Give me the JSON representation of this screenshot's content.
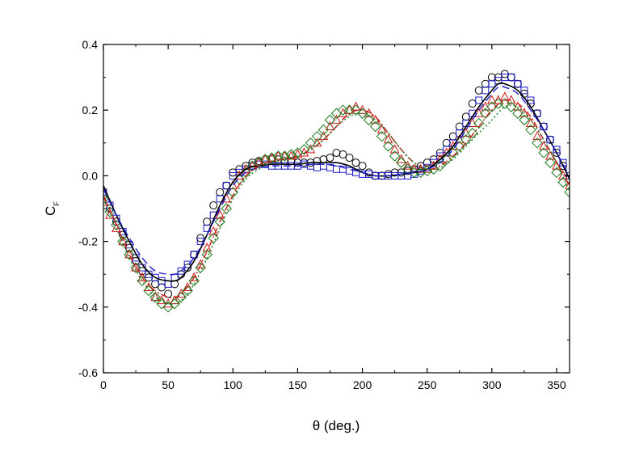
{
  "chart_data": {
    "type": "line",
    "xlabel": "θ (deg.)",
    "ylabel_main": "C",
    "ylabel_sub": "F",
    "xlim": [
      0,
      360
    ],
    "ylim": [
      -0.6,
      0.4
    ],
    "xticks": [
      0,
      50,
      100,
      150,
      200,
      250,
      300,
      350
    ],
    "yticks": [
      -0.6,
      -0.4,
      -0.2,
      0.0,
      0.2,
      0.4
    ],
    "xtick_labels": [
      "0",
      "50",
      "100",
      "150",
      "200",
      "250",
      "300",
      "350"
    ],
    "ytick_labels": [
      "-0.6",
      "-0.4",
      "-0.2",
      "0.0",
      "0.2",
      "0.4"
    ],
    "grid": false,
    "series": [
      {
        "kind": "markers",
        "marker": "circle",
        "color": "#000000",
        "x": [
          0,
          5,
          10,
          15,
          20,
          25,
          30,
          35,
          40,
          45,
          50,
          55,
          60,
          65,
          70,
          75,
          80,
          85,
          90,
          95,
          100,
          105,
          110,
          115,
          120,
          125,
          130,
          135,
          140,
          145,
          150,
          155,
          160,
          165,
          170,
          175,
          180,
          185,
          190,
          195,
          200,
          205,
          210,
          215,
          220,
          225,
          230,
          235,
          240,
          245,
          250,
          255,
          260,
          265,
          270,
          275,
          280,
          285,
          290,
          295,
          300,
          305,
          310,
          315,
          320,
          325,
          330,
          335,
          340,
          345,
          350,
          355,
          360
        ],
        "y": [
          -0.06,
          -0.1,
          -0.14,
          -0.18,
          -0.22,
          -0.26,
          -0.29,
          -0.31,
          -0.33,
          -0.34,
          -0.36,
          -0.33,
          -0.3,
          -0.28,
          -0.24,
          -0.19,
          -0.14,
          -0.09,
          -0.05,
          -0.03,
          0.01,
          0.02,
          0.03,
          0.04,
          0.045,
          0.05,
          0.05,
          0.05,
          0.045,
          0.045,
          0.04,
          0.04,
          0.04,
          0.045,
          0.05,
          0.055,
          0.07,
          0.065,
          0.055,
          0.04,
          0.03,
          0.01,
          0.0,
          0.0,
          0.005,
          0.01,
          0.01,
          0.015,
          0.02,
          0.03,
          0.04,
          0.05,
          0.07,
          0.1,
          0.12,
          0.15,
          0.18,
          0.22,
          0.26,
          0.28,
          0.3,
          0.3,
          0.31,
          0.3,
          0.28,
          0.25,
          0.22,
          0.19,
          0.15,
          0.11,
          0.07,
          0.03,
          -0.01
        ]
      },
      {
        "kind": "markers",
        "marker": "square",
        "color": "#1a1acc",
        "x": [
          0,
          5,
          10,
          15,
          20,
          25,
          30,
          35,
          40,
          45,
          50,
          55,
          60,
          65,
          70,
          75,
          80,
          85,
          90,
          95,
          100,
          105,
          110,
          115,
          120,
          125,
          130,
          135,
          140,
          145,
          150,
          155,
          160,
          165,
          170,
          175,
          180,
          185,
          190,
          195,
          200,
          205,
          210,
          215,
          220,
          225,
          230,
          235,
          240,
          245,
          250,
          255,
          260,
          265,
          270,
          275,
          280,
          285,
          290,
          295,
          300,
          305,
          310,
          315,
          320,
          325,
          330,
          335,
          340,
          345,
          350,
          355,
          360
        ],
        "y": [
          -0.05,
          -0.09,
          -0.13,
          -0.17,
          -0.21,
          -0.25,
          -0.28,
          -0.3,
          -0.31,
          -0.32,
          -0.33,
          -0.31,
          -0.29,
          -0.27,
          -0.24,
          -0.2,
          -0.16,
          -0.12,
          -0.07,
          -0.03,
          0.0,
          0.01,
          0.02,
          0.03,
          0.035,
          0.035,
          0.03,
          0.03,
          0.03,
          0.03,
          0.03,
          0.035,
          0.03,
          0.025,
          0.03,
          0.025,
          0.02,
          0.02,
          0.015,
          0.01,
          0.005,
          0.005,
          0.0,
          0.0,
          0.0,
          0.0,
          0.0,
          0.0,
          0.005,
          0.015,
          0.025,
          0.04,
          0.06,
          0.08,
          0.1,
          0.13,
          0.16,
          0.19,
          0.23,
          0.26,
          0.28,
          0.29,
          0.3,
          0.3,
          0.28,
          0.26,
          0.23,
          0.19,
          0.15,
          0.11,
          0.08,
          0.04,
          0.0
        ]
      },
      {
        "kind": "markers",
        "marker": "triangle",
        "color": "#cc1a1a",
        "x": [
          0,
          5,
          10,
          15,
          20,
          25,
          30,
          35,
          40,
          45,
          50,
          55,
          60,
          65,
          70,
          75,
          80,
          85,
          90,
          95,
          100,
          105,
          110,
          115,
          120,
          125,
          130,
          135,
          140,
          145,
          150,
          155,
          160,
          165,
          170,
          175,
          180,
          185,
          190,
          195,
          200,
          205,
          210,
          215,
          220,
          225,
          230,
          235,
          240,
          245,
          250,
          255,
          260,
          265,
          270,
          275,
          280,
          285,
          290,
          295,
          300,
          305,
          310,
          315,
          320,
          325,
          330,
          335,
          340,
          345,
          350,
          355,
          360
        ],
        "y": [
          -0.08,
          -0.12,
          -0.16,
          -0.2,
          -0.24,
          -0.28,
          -0.31,
          -0.34,
          -0.37,
          -0.38,
          -0.39,
          -0.38,
          -0.36,
          -0.34,
          -0.31,
          -0.27,
          -0.22,
          -0.17,
          -0.12,
          -0.07,
          -0.03,
          0.0,
          0.02,
          0.03,
          0.04,
          0.05,
          0.055,
          0.06,
          0.06,
          0.06,
          0.065,
          0.07,
          0.08,
          0.1,
          0.12,
          0.15,
          0.17,
          0.19,
          0.2,
          0.21,
          0.2,
          0.19,
          0.17,
          0.14,
          0.11,
          0.08,
          0.05,
          0.03,
          0.02,
          0.02,
          0.02,
          0.03,
          0.05,
          0.07,
          0.09,
          0.11,
          0.13,
          0.16,
          0.19,
          0.21,
          0.23,
          0.23,
          0.24,
          0.23,
          0.21,
          0.19,
          0.16,
          0.12,
          0.09,
          0.06,
          0.03,
          0.0,
          -0.03
        ]
      },
      {
        "kind": "markers",
        "marker": "diamond",
        "color": "#1a7a1a",
        "x": [
          0,
          5,
          10,
          15,
          20,
          25,
          30,
          35,
          40,
          45,
          50,
          55,
          60,
          65,
          70,
          75,
          80,
          85,
          90,
          95,
          100,
          105,
          110,
          115,
          120,
          125,
          130,
          135,
          140,
          145,
          150,
          155,
          160,
          165,
          170,
          175,
          180,
          185,
          190,
          195,
          200,
          205,
          210,
          215,
          220,
          225,
          230,
          235,
          240,
          245,
          250,
          255,
          260,
          265,
          270,
          275,
          280,
          285,
          290,
          295,
          300,
          305,
          310,
          315,
          320,
          325,
          330,
          335,
          340,
          345,
          350,
          355,
          360
        ],
        "y": [
          -0.07,
          -0.11,
          -0.15,
          -0.2,
          -0.24,
          -0.28,
          -0.32,
          -0.35,
          -0.37,
          -0.39,
          -0.4,
          -0.39,
          -0.37,
          -0.35,
          -0.32,
          -0.28,
          -0.24,
          -0.19,
          -0.14,
          -0.1,
          -0.05,
          -0.01,
          0.01,
          0.03,
          0.04,
          0.05,
          0.055,
          0.06,
          0.06,
          0.065,
          0.07,
          0.08,
          0.1,
          0.12,
          0.14,
          0.17,
          0.19,
          0.2,
          0.2,
          0.2,
          0.19,
          0.17,
          0.15,
          0.12,
          0.09,
          0.06,
          0.04,
          0.02,
          0.01,
          0.01,
          0.015,
          0.02,
          0.03,
          0.05,
          0.07,
          0.09,
          0.11,
          0.13,
          0.16,
          0.19,
          0.21,
          0.22,
          0.22,
          0.21,
          0.19,
          0.17,
          0.14,
          0.1,
          0.07,
          0.04,
          0.01,
          -0.02,
          -0.05
        ]
      },
      {
        "kind": "line",
        "style": "solid",
        "color": "#000000",
        "x": [
          0,
          10,
          20,
          30,
          40,
          50,
          55,
          60,
          70,
          80,
          90,
          100,
          110,
          120,
          130,
          140,
          150,
          160,
          170,
          180,
          190,
          200,
          210,
          220,
          230,
          240,
          250,
          260,
          270,
          280,
          290,
          300,
          305,
          310,
          320,
          330,
          340,
          350,
          360
        ],
        "y": [
          -0.03,
          -0.12,
          -0.2,
          -0.27,
          -0.31,
          -0.32,
          -0.32,
          -0.31,
          -0.26,
          -0.18,
          -0.09,
          -0.02,
          0.02,
          0.03,
          0.035,
          0.035,
          0.035,
          0.04,
          0.04,
          0.04,
          0.03,
          0.01,
          0.0,
          0.0,
          0.005,
          0.01,
          0.02,
          0.05,
          0.09,
          0.15,
          0.21,
          0.26,
          0.28,
          0.28,
          0.26,
          0.21,
          0.14,
          0.07,
          -0.01
        ]
      },
      {
        "kind": "line",
        "style": "dashed",
        "color": "#1a1acc",
        "x": [
          0,
          10,
          20,
          30,
          40,
          50,
          55,
          60,
          70,
          80,
          90,
          100,
          110,
          120,
          130,
          140,
          150,
          160,
          170,
          180,
          190,
          200,
          210,
          220,
          230,
          240,
          250,
          260,
          270,
          280,
          290,
          300,
          305,
          310,
          320,
          330,
          340,
          350,
          360
        ],
        "y": [
          -0.04,
          -0.12,
          -0.19,
          -0.25,
          -0.29,
          -0.3,
          -0.3,
          -0.29,
          -0.25,
          -0.18,
          -0.1,
          -0.03,
          0.01,
          0.025,
          0.03,
          0.03,
          0.03,
          0.035,
          0.035,
          0.03,
          0.02,
          0.01,
          0.0,
          0.0,
          0.005,
          0.01,
          0.02,
          0.04,
          0.08,
          0.14,
          0.2,
          0.25,
          0.27,
          0.27,
          0.25,
          0.2,
          0.14,
          0.07,
          0.0
        ]
      },
      {
        "kind": "line",
        "style": "dashdot",
        "color": "#cc1a1a",
        "x": [
          0,
          10,
          20,
          30,
          40,
          50,
          55,
          60,
          70,
          80,
          90,
          100,
          110,
          120,
          130,
          140,
          150,
          160,
          170,
          180,
          190,
          200,
          210,
          220,
          230,
          240,
          250,
          260,
          270,
          280,
          290,
          300,
          310,
          320,
          330,
          340,
          350,
          360
        ],
        "y": [
          -0.06,
          -0.15,
          -0.24,
          -0.31,
          -0.35,
          -0.37,
          -0.37,
          -0.36,
          -0.31,
          -0.23,
          -0.14,
          -0.06,
          0.0,
          0.03,
          0.045,
          0.05,
          0.06,
          0.08,
          0.11,
          0.15,
          0.19,
          0.2,
          0.18,
          0.13,
          0.08,
          0.04,
          0.02,
          0.03,
          0.06,
          0.1,
          0.15,
          0.2,
          0.23,
          0.22,
          0.18,
          0.11,
          0.04,
          -0.03
        ]
      },
      {
        "kind": "line",
        "style": "dotted",
        "color": "#1a7a1a",
        "x": [
          0,
          10,
          20,
          30,
          40,
          50,
          55,
          60,
          70,
          80,
          90,
          100,
          110,
          120,
          130,
          140,
          150,
          160,
          170,
          180,
          190,
          200,
          210,
          220,
          230,
          240,
          250,
          260,
          270,
          280,
          290,
          300,
          310,
          320,
          330,
          340,
          350,
          360
        ],
        "y": [
          -0.07,
          -0.16,
          -0.25,
          -0.32,
          -0.37,
          -0.39,
          -0.39,
          -0.38,
          -0.33,
          -0.25,
          -0.16,
          -0.07,
          -0.01,
          0.02,
          0.04,
          0.05,
          0.06,
          0.08,
          0.11,
          0.15,
          0.18,
          0.19,
          0.17,
          0.13,
          0.08,
          0.04,
          0.02,
          0.025,
          0.05,
          0.09,
          0.13,
          0.17,
          0.21,
          0.21,
          0.17,
          0.11,
          0.04,
          -0.05
        ]
      }
    ]
  }
}
